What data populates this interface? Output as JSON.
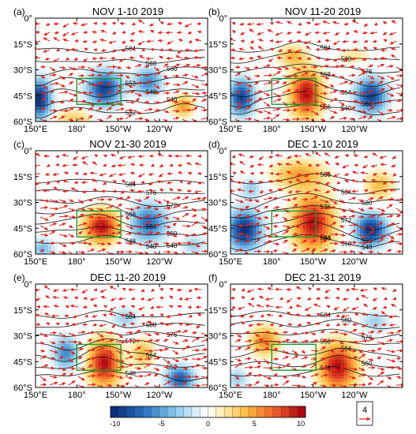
{
  "chart_data": {
    "type": "heatmap",
    "description": "Six map panels: shaded anomaly field, black contours (geopotential height), red wind vectors, green box",
    "x_axis": {
      "ticks": [
        "150°E",
        "180°",
        "150°W",
        "120°W"
      ]
    },
    "y_axis": {
      "ticks": [
        "0°",
        "15°S",
        "30°S",
        "45°S",
        "60°S"
      ]
    },
    "colorbar": {
      "ticks": [
        "-10",
        "-5",
        "0",
        "5",
        "10"
      ],
      "range": [
        -10,
        10
      ]
    },
    "vector_reference": {
      "value": "4"
    },
    "panels": [
      {
        "label": "(a)",
        "title": "NOV 1-10 2019",
        "anomalies": [
          {
            "lon": 153,
            "lat": -47,
            "amp": -10,
            "rx": 8,
            "ry": 11
          },
          {
            "lon": 200,
            "lat": -41,
            "amp": -9,
            "rx": 12,
            "ry": 10
          },
          {
            "lon": 232,
            "lat": -37,
            "amp": -6,
            "rx": 10,
            "ry": 8
          },
          {
            "lon": 257,
            "lat": -51,
            "amp": 5,
            "rx": 8,
            "ry": 6
          },
          {
            "lon": 178,
            "lat": -58,
            "amp": 3,
            "rx": 14,
            "ry": 5
          }
        ],
        "contour_labels": [
          "584",
          "568",
          "560",
          "552",
          "548",
          "540",
          "532"
        ]
      },
      {
        "label": "(b)",
        "title": "NOV 11-20 2019",
        "anomalies": [
          {
            "lon": 158,
            "lat": -46,
            "amp": -9,
            "rx": 9,
            "ry": 10
          },
          {
            "lon": 205,
            "lat": -44,
            "amp": 10,
            "rx": 11,
            "ry": 13
          },
          {
            "lon": 252,
            "lat": -45,
            "amp": -9,
            "rx": 11,
            "ry": 10
          },
          {
            "lon": 195,
            "lat": -22,
            "amp": 4,
            "rx": 10,
            "ry": 6
          },
          {
            "lon": 240,
            "lat": -22,
            "amp": 2,
            "rx": 12,
            "ry": 5
          }
        ],
        "contour_labels": [
          "584",
          "580",
          "576",
          "568",
          "564",
          "560",
          "556",
          "540"
        ]
      },
      {
        "label": "(c)",
        "title": "NOV 21-30 2019",
        "anomalies": [
          {
            "lon": 198,
            "lat": -44,
            "amp": 10,
            "rx": 12,
            "ry": 9
          },
          {
            "lon": 232,
            "lat": -42,
            "amp": -7,
            "rx": 13,
            "ry": 11
          },
          {
            "lon": 155,
            "lat": -57,
            "amp": -4,
            "rx": 8,
            "ry": 6
          },
          {
            "lon": 265,
            "lat": -55,
            "amp": -3,
            "rx": 8,
            "ry": 6
          }
        ],
        "contour_labels": [
          "584",
          "576",
          "572",
          "568",
          "564",
          "560",
          "548",
          "540",
          "548"
        ]
      },
      {
        "label": "(d)",
        "title": "DEC 1-10 2019",
        "anomalies": [
          {
            "lon": 160,
            "lat": -46,
            "amp": -10,
            "rx": 12,
            "ry": 11
          },
          {
            "lon": 210,
            "lat": -42,
            "amp": 10,
            "rx": 14,
            "ry": 15
          },
          {
            "lon": 252,
            "lat": -46,
            "amp": -10,
            "rx": 11,
            "ry": 9
          },
          {
            "lon": 200,
            "lat": -14,
            "amp": 5,
            "rx": 18,
            "ry": 8
          },
          {
            "lon": 258,
            "lat": -20,
            "amp": 4,
            "rx": 10,
            "ry": 8
          },
          {
            "lon": 165,
            "lat": -22,
            "amp": -3,
            "rx": 8,
            "ry": 6
          }
        ],
        "contour_labels": [
          "588",
          "584",
          "580",
          "576",
          "572",
          "568",
          "564",
          "560",
          "548",
          "540"
        ]
      },
      {
        "label": "(e)",
        "title": "DEC 11-20 2019",
        "anomalies": [
          {
            "lon": 200,
            "lat": -46,
            "amp": 10,
            "rx": 11,
            "ry": 13
          },
          {
            "lon": 172,
            "lat": -40,
            "amp": -6,
            "rx": 9,
            "ry": 9
          },
          {
            "lon": 255,
            "lat": -55,
            "amp": -8,
            "rx": 10,
            "ry": 7
          },
          {
            "lon": 228,
            "lat": -40,
            "amp": 4,
            "rx": 8,
            "ry": 8
          },
          {
            "lon": 215,
            "lat": -20,
            "amp": -3,
            "rx": 10,
            "ry": 6
          }
        ],
        "contour_labels": [
          "584",
          "568",
          "576",
          "572",
          "564",
          "552",
          "548"
        ]
      },
      {
        "label": "(f)",
        "title": "DEC 21-31 2019",
        "anomalies": [
          {
            "lon": 228,
            "lat": -48,
            "amp": 10,
            "rx": 13,
            "ry": 13
          },
          {
            "lon": 175,
            "lat": -33,
            "amp": 6,
            "rx": 10,
            "ry": 8
          },
          {
            "lon": 255,
            "lat": -22,
            "amp": -3,
            "rx": 10,
            "ry": 6
          },
          {
            "lon": 155,
            "lat": -55,
            "amp": -3,
            "rx": 8,
            "ry": 6
          }
        ],
        "contour_labels": [
          "584",
          "580",
          "576",
          "568",
          "564",
          "560",
          "548"
        ]
      }
    ]
  }
}
